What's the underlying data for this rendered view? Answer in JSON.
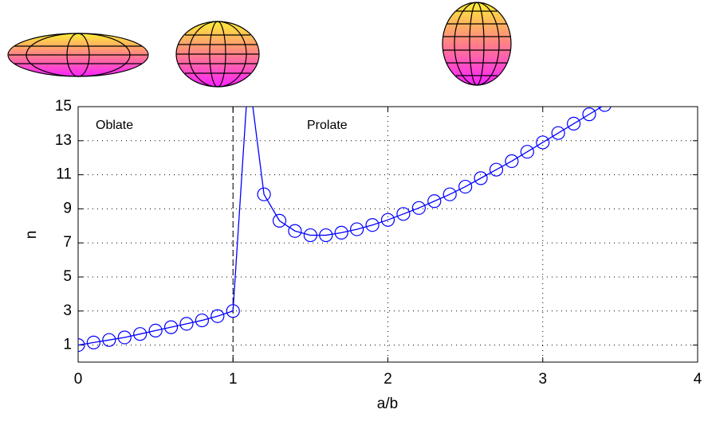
{
  "chart_data": {
    "type": "line",
    "xlabel": "a/b",
    "ylabel": "n",
    "annotations": [
      "Oblate",
      "Prolate"
    ],
    "divider_x": 1,
    "x": [
      0,
      0.1,
      0.2,
      0.3,
      0.4,
      0.5,
      0.6,
      0.7,
      0.8,
      0.9,
      1.0,
      1.1,
      1.2,
      1.3,
      1.4,
      1.5,
      1.6,
      1.7,
      1.8,
      1.9,
      2.0,
      2.1,
      2.2,
      2.3,
      2.4,
      2.5,
      2.6,
      2.7,
      2.8,
      2.9,
      3.0,
      3.1,
      3.2,
      3.3,
      3.4
    ],
    "series": [
      {
        "color": "#0000ff",
        "values": [
          1.0,
          1.15,
          1.3,
          1.45,
          1.65,
          1.85,
          2.05,
          2.25,
          2.45,
          2.7,
          3.0,
          17,
          9.85,
          8.3,
          7.7,
          7.45,
          7.45,
          7.6,
          7.8,
          8.05,
          8.35,
          8.7,
          9.05,
          9.45,
          9.85,
          10.3,
          10.8,
          11.3,
          11.8,
          12.35,
          12.9,
          13.45,
          14.0,
          14.55,
          15.1
        ]
      }
    ],
    "xlim": [
      0,
      4
    ],
    "xticks": [
      0,
      1,
      2,
      3,
      4
    ],
    "ylim": [
      0,
      15
    ],
    "yticks": [
      1,
      3,
      5,
      7,
      9,
      11,
      13,
      15
    ],
    "grid": true
  }
}
